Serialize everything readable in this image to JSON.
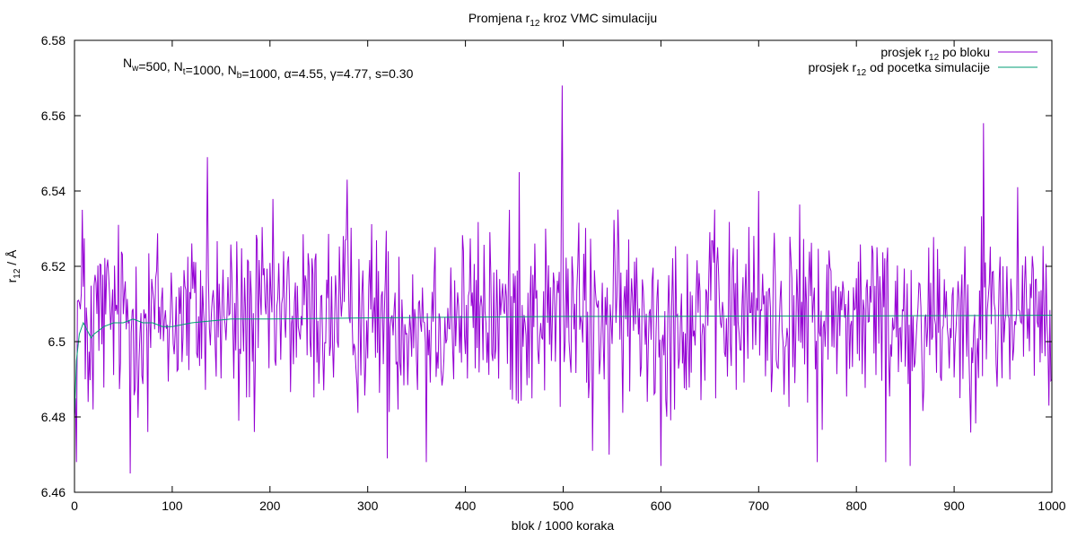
{
  "chart_data": {
    "type": "line",
    "title": {
      "pre": "Promjena r",
      "sub": "12",
      "post": " kroz VMC simulaciju"
    },
    "xlabel": "blok / 1000 koraka",
    "ylabel": {
      "pre": "r",
      "sub": "12",
      "post": " / Å"
    },
    "xlim": [
      0,
      1000
    ],
    "ylim": [
      6.46,
      6.58
    ],
    "x_ticks": [
      "0",
      "100",
      "200",
      "300",
      "400",
      "500",
      "600",
      "700",
      "800",
      "900",
      "1000"
    ],
    "y_ticks": [
      "6.46",
      "6.48",
      "6.5",
      "6.52",
      "6.54",
      "6.56",
      "6.58"
    ],
    "grid": false,
    "legend_position": "top-right",
    "annotation": [
      {
        "t": "N",
        "s": "w"
      },
      {
        "t": "=500, N",
        "s": "t"
      },
      {
        "t": "=1000, N",
        "s": "b"
      },
      {
        "t": "=1000, α=4.55, γ=4.77, s=0.30",
        "s": ""
      }
    ],
    "series": [
      {
        "name": {
          "pre": "prosjek r",
          "sub": "12",
          "post": " po bloku"
        },
        "color": "#9400d3",
        "kind": "block",
        "stats": {
          "mean": 6.507,
          "amplitude": 0.012
        },
        "x": [
          0,
          2,
          4,
          8,
          11,
          14,
          19,
          57,
          75,
          136,
          168,
          184,
          279,
          320,
          360,
          455,
          499,
          530,
          547,
          600,
          700,
          760,
          830,
          855,
          930,
          965,
          997,
          1000
        ],
        "values": [
          6.48,
          6.468,
          6.511,
          6.535,
          6.49,
          6.484,
          6.482,
          6.465,
          6.476,
          6.549,
          6.479,
          6.476,
          6.543,
          6.469,
          6.468,
          6.545,
          6.568,
          6.471,
          6.47,
          6.467,
          6.54,
          6.468,
          6.468,
          6.467,
          6.558,
          6.541,
          6.483,
          6.49
        ]
      },
      {
        "name": {
          "pre": "prosjek r",
          "sub": "12",
          "post": " od pocetka simulacije"
        },
        "color": "#009e73",
        "kind": "cumulative",
        "x": [
          0,
          2,
          5,
          9,
          13,
          17,
          20,
          30,
          40,
          50,
          60,
          70,
          80,
          90,
          100,
          110,
          120,
          140,
          160,
          200,
          300,
          400,
          500,
          600,
          700,
          800,
          900,
          1000
        ],
        "values": [
          6.48,
          6.495,
          6.502,
          6.505,
          6.503,
          6.501,
          6.502,
          6.504,
          6.505,
          6.505,
          6.506,
          6.505,
          6.505,
          6.504,
          6.504,
          6.5045,
          6.505,
          6.5055,
          6.506,
          6.506,
          6.5063,
          6.5065,
          6.5067,
          6.5067,
          6.5068,
          6.5068,
          6.5069,
          6.507
        ]
      }
    ]
  }
}
